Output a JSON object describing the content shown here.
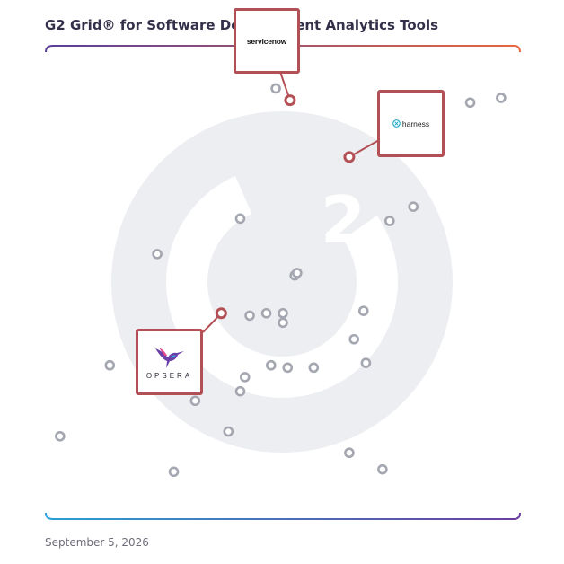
{
  "title": "G2 Grid® for Software Development Analytics Tools",
  "footer_date": "September 5, 2026",
  "colors": {
    "highlight": "#b35055",
    "dot": "#a4a6b0",
    "axis": "#8a6fb0",
    "watermark": "#edeef1",
    "border_top_left": "#5a3f9a",
    "border_top_right": "#e8673d",
    "border_bottom_left": "#2a9fd8",
    "border_bottom_right": "#6a3fa0"
  },
  "chart_data": {
    "type": "scatter",
    "title": "G2 Grid® for Software Development Analytics Tools",
    "xlabel": "",
    "ylabel": "",
    "xlim": [
      0,
      100
    ],
    "ylim": [
      0,
      100
    ],
    "grid": "quadrants",
    "highlighted": [
      {
        "name": "servicenow",
        "x": 51.5,
        "y": 88.5
      },
      {
        "name": "harness",
        "x": 64,
        "y": 76.5
      },
      {
        "name": "OPSERA",
        "x": 37,
        "y": 43.5
      }
    ],
    "points": [
      {
        "x": 48.5,
        "y": 91
      },
      {
        "x": 89.5,
        "y": 88
      },
      {
        "x": 96,
        "y": 89
      },
      {
        "x": 77.5,
        "y": 66
      },
      {
        "x": 72.5,
        "y": 63
      },
      {
        "x": 41,
        "y": 63.5
      },
      {
        "x": 23.5,
        "y": 56
      },
      {
        "x": 52.5,
        "y": 51.5
      },
      {
        "x": 53,
        "y": 52
      },
      {
        "x": 67,
        "y": 44
      },
      {
        "x": 43,
        "y": 43
      },
      {
        "x": 46.5,
        "y": 43.5
      },
      {
        "x": 50,
        "y": 43.5
      },
      {
        "x": 50,
        "y": 41.5
      },
      {
        "x": 65,
        "y": 38
      },
      {
        "x": 13.5,
        "y": 32.5
      },
      {
        "x": 47.5,
        "y": 32.5
      },
      {
        "x": 51,
        "y": 32
      },
      {
        "x": 56.5,
        "y": 32
      },
      {
        "x": 67.5,
        "y": 33
      },
      {
        "x": 42,
        "y": 30
      },
      {
        "x": 41,
        "y": 27
      },
      {
        "x": 31.5,
        "y": 25
      },
      {
        "x": 38.5,
        "y": 18.5
      },
      {
        "x": 3,
        "y": 17.5
      },
      {
        "x": 64,
        "y": 14
      },
      {
        "x": 27,
        "y": 10
      },
      {
        "x": 71,
        "y": 10.5
      }
    ]
  }
}
